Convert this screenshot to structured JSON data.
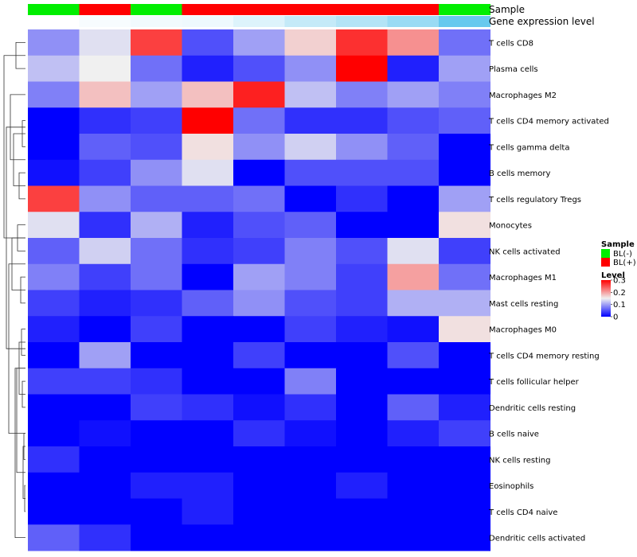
{
  "chart_data": {
    "type": "heatmap",
    "annotations": [
      {
        "label": "Sample",
        "values": [
          "BL(-)",
          "BL(+)",
          "BL(-)",
          "BL(+)",
          "BL(+)",
          "BL(+)",
          "BL(+)",
          "BL(+)",
          "BL(-)"
        ]
      },
      {
        "label": "Gene expression level",
        "values": [
          0.0,
          0.05,
          0.08,
          0.1,
          0.2,
          0.35,
          0.45,
          0.6,
          0.9
        ]
      }
    ],
    "rows": [
      "T cells CD8",
      "Plasma cells",
      "Macrophages M2",
      "T cells CD4 memory activated",
      "T cells gamma delta",
      "B cells memory",
      "T cells regulatory  Tregs",
      "Monocytes",
      "NK cells activated",
      "Macrophages M1",
      "Mast cells resting",
      "Macrophages M0",
      "T cells CD4 memory resting",
      "T cells follicular helper",
      "Dendritic cells resting",
      "B cells naive",
      "NK cells resting",
      "Eosinophils",
      "T cells CD4 naive",
      "Dendritic cells activated"
    ],
    "values": [
      [
        0.09,
        0.14,
        0.26,
        0.05,
        0.1,
        0.17,
        0.27,
        0.21,
        0.07
      ],
      [
        0.12,
        0.15,
        0.07,
        0.02,
        0.05,
        0.09,
        0.3,
        0.02,
        0.1
      ],
      [
        0.08,
        0.18,
        0.1,
        0.18,
        0.28,
        0.12,
        0.08,
        0.1,
        0.08
      ],
      [
        0.0,
        0.03,
        0.04,
        0.3,
        0.07,
        0.03,
        0.03,
        0.05,
        0.06
      ],
      [
        0.0,
        0.06,
        0.05,
        0.16,
        0.09,
        0.13,
        0.09,
        0.06,
        0.0
      ],
      [
        0.01,
        0.04,
        0.09,
        0.14,
        0.0,
        0.05,
        0.05,
        0.05,
        0.0
      ],
      [
        0.26,
        0.09,
        0.06,
        0.06,
        0.07,
        0.0,
        0.03,
        0.0,
        0.1
      ],
      [
        0.14,
        0.03,
        0.11,
        0.02,
        0.05,
        0.06,
        0.0,
        0.0,
        0.16
      ],
      [
        0.06,
        0.13,
        0.07,
        0.03,
        0.04,
        0.08,
        0.05,
        0.14,
        0.04
      ],
      [
        0.08,
        0.04,
        0.07,
        0.0,
        0.1,
        0.08,
        0.04,
        0.2,
        0.07
      ],
      [
        0.04,
        0.02,
        0.03,
        0.06,
        0.09,
        0.05,
        0.04,
        0.11,
        0.11
      ],
      [
        0.02,
        0.0,
        0.04,
        0.0,
        0.0,
        0.04,
        0.02,
        0.01,
        0.16
      ],
      [
        0.0,
        0.1,
        0.0,
        0.0,
        0.04,
        0.0,
        0.0,
        0.05,
        0.0
      ],
      [
        0.04,
        0.04,
        0.03,
        0.0,
        0.0,
        0.08,
        0.0,
        0.0,
        0.0
      ],
      [
        0.0,
        0.0,
        0.04,
        0.03,
        0.01,
        0.03,
        0.0,
        0.06,
        0.02
      ],
      [
        0.0,
        0.01,
        0.0,
        0.0,
        0.03,
        0.01,
        0.0,
        0.02,
        0.04
      ],
      [
        0.03,
        0.0,
        0.0,
        0.0,
        0.0,
        0.0,
        0.0,
        0.0,
        0.0
      ],
      [
        0.0,
        0.0,
        0.02,
        0.02,
        0.0,
        0.0,
        0.02,
        0.0,
        0.0
      ],
      [
        0.0,
        0.0,
        0.0,
        0.02,
        0.0,
        0.0,
        0.0,
        0.0,
        0.0
      ],
      [
        0.06,
        0.03,
        0.0,
        0.0,
        0.0,
        0.0,
        0.0,
        0.0,
        0.0
      ]
    ],
    "color_scale": {
      "low": "#0000ff",
      "mid": "#f0f0f0",
      "high": "#ff0000",
      "min": 0,
      "mid_value": 0.15,
      "max": 0.3
    },
    "legend": {
      "sample_title": "Sample",
      "sample_entries": [
        {
          "label": "BL(-)",
          "color": "#00ee00"
        },
        {
          "label": "BL(+)",
          "color": "#ff0000"
        }
      ],
      "level_title": "Level",
      "level_ticks": [
        "0.3",
        "0.2",
        "0.1",
        "0"
      ],
      "level_tick_values": [
        0.3,
        0.2,
        0.1,
        0
      ]
    },
    "expression_colors": {
      "low": "#ffffff",
      "high": "#56c3ec"
    },
    "dendrogram": "rows"
  }
}
